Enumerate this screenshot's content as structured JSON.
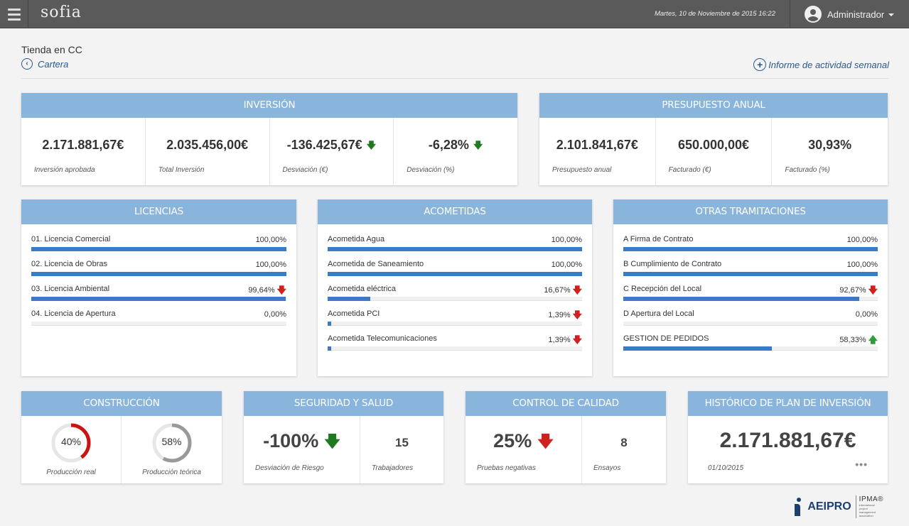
{
  "app": {
    "brand": "sofia",
    "datetime": "Martes, 10 de Noviembre de 2015 16:22",
    "user": "Administrador"
  },
  "page": {
    "title": "Tienda en CC",
    "back_label": "Cartera",
    "report_label": "Informe de actividad semanal"
  },
  "inversion": {
    "title": "INVERSIÓN",
    "kpis": [
      {
        "value": "2.171.881,67€",
        "label": "Inversión aprobada",
        "trend": ""
      },
      {
        "value": "2.035.456,00€",
        "label": "Total Inversión",
        "trend": ""
      },
      {
        "value": "-136.425,67€",
        "label": "Desviación (€)",
        "trend": "down"
      },
      {
        "value": "-6,28%",
        "label": "Desviación (%)",
        "trend": "down"
      }
    ]
  },
  "presupuesto": {
    "title": "PRESUPUESTO ANUAL",
    "kpis": [
      {
        "value": "2.101.841,67€",
        "label": "Presupuesto anual"
      },
      {
        "value": "650.000,00€",
        "label": "Facturado (€)"
      },
      {
        "value": "30,93%",
        "label": "Facturado (%)"
      }
    ]
  },
  "licencias": {
    "title": "LICENCIAS",
    "items": [
      {
        "label": "01. Licencia Comercial",
        "value": "100,00%",
        "progress": 1.0,
        "trend": ""
      },
      {
        "label": "02. Licencia de Obras",
        "value": "100,00%",
        "progress": 1.0,
        "trend": ""
      },
      {
        "label": "03. Licencia Ambiental",
        "value": "99,64%",
        "progress": 0.9964,
        "trend": "down"
      },
      {
        "label": "04. Licencia de Apertura",
        "value": "0,00%",
        "progress": 0.0,
        "trend": ""
      }
    ]
  },
  "acometidas": {
    "title": "ACOMETIDAS",
    "items": [
      {
        "label": "Acometida Agua",
        "value": "100,00%",
        "progress": 1.0,
        "trend": ""
      },
      {
        "label": "Acometida de Saneamiento",
        "value": "100,00%",
        "progress": 1.0,
        "trend": ""
      },
      {
        "label": "Acometida eléctrica",
        "value": "16,67%",
        "progress": 0.1667,
        "trend": "down"
      },
      {
        "label": "Acometida PCI",
        "value": "1,39%",
        "progress": 0.0139,
        "trend": "down"
      },
      {
        "label": "Acometida Telecomunicaciones",
        "value": "1,39%",
        "progress": 0.0139,
        "trend": "down"
      }
    ]
  },
  "otras": {
    "title": "OTRAS TRAMITACIONES",
    "items": [
      {
        "label": "A Firma de Contrato",
        "value": "100,00%",
        "progress": 1.0,
        "trend": ""
      },
      {
        "label": "B Cumplimiento de Contrato",
        "value": "100,00%",
        "progress": 1.0,
        "trend": ""
      },
      {
        "label": "C Recepción del Local",
        "value": "92,67%",
        "progress": 0.9267,
        "trend": "down"
      },
      {
        "label": "D Apertura del Local",
        "value": "0,00%",
        "progress": 0.0,
        "trend": ""
      },
      {
        "label": "GESTION DE PEDIDOS",
        "value": "58,33%",
        "progress": 0.5833,
        "trend": "up"
      }
    ]
  },
  "construccion": {
    "title": "CONSTRUCCIÓN",
    "real": {
      "value": "40%",
      "fraction": 0.4,
      "label": "Producción real",
      "color": "#cc1111"
    },
    "teorica": {
      "value": "58%",
      "fraction": 0.58,
      "label": "Producción teórica",
      "color": "#999999"
    }
  },
  "seguridad": {
    "title": "SEGURIDAD Y SALUD",
    "main": {
      "value": "-100%",
      "label": "Desviación de Riesgo",
      "trend": "down"
    },
    "side": {
      "value": "15",
      "label": "Trabajadores"
    }
  },
  "calidad": {
    "title": "CONTROL DE CALIDAD",
    "main": {
      "value": "25%",
      "label": "Pruebas negativas",
      "trend": "down-red"
    },
    "side": {
      "value": "8",
      "label": "Ensayos"
    }
  },
  "historico": {
    "title": "HISTÓRICO DE PLAN DE INVERSIÓN",
    "value": "2.171.881,67€",
    "date": "01/10/2015",
    "more": "•••"
  },
  "footer": {
    "aeipro": "AEIPRO",
    "ipma": "IPMA®",
    "ipma_sub": "international project management association"
  },
  "colors": {
    "header": "#89b4dc",
    "bar": "#3a7ac6",
    "down_green": "#1f7a1f",
    "down_red": "#d02020",
    "up_green": "#2e9e3a"
  },
  "icons": {
    "menu": "hamburger-icon",
    "user": "user-icon",
    "back": "chevron-left-circle-icon",
    "add": "plus-circle-icon"
  }
}
